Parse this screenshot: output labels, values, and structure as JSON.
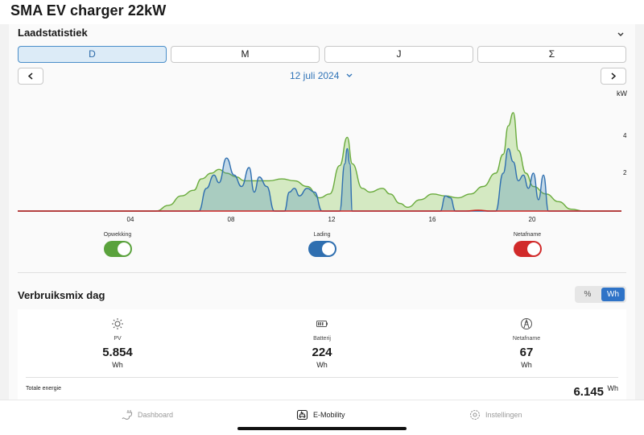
{
  "app": {
    "title": "SMA EV charger 22kW"
  },
  "stats": {
    "title": "Laadstatistiek",
    "periods": [
      "D",
      "M",
      "J",
      "Σ"
    ],
    "active_period": "D",
    "date": "12 juli 2024",
    "unit": "kW"
  },
  "chart_data": {
    "type": "area",
    "xlabel": "",
    "ylabel": "kW",
    "xlim": [
      0,
      24
    ],
    "ylim": [
      0,
      5.5
    ],
    "x_ticks": [
      "04",
      "08",
      "12",
      "16",
      "20"
    ],
    "y_ticks": [
      "2",
      "4"
    ],
    "series": [
      {
        "name": "Opwekking",
        "color": "#6aab3d",
        "points": [
          [
            0,
            0
          ],
          [
            5.5,
            0
          ],
          [
            6,
            0.3
          ],
          [
            6.5,
            0.8
          ],
          [
            7,
            1.1
          ],
          [
            7.3,
            1.7
          ],
          [
            7.7,
            2.0
          ],
          [
            8,
            2.2
          ],
          [
            8.3,
            2.0
          ],
          [
            8.7,
            1.8
          ],
          [
            9,
            1.6
          ],
          [
            9.5,
            1.6
          ],
          [
            10,
            1.6
          ],
          [
            10.5,
            1.7
          ],
          [
            11,
            1.6
          ],
          [
            11.5,
            1.3
          ],
          [
            12,
            0.7
          ],
          [
            12.4,
            0.9
          ],
          [
            12.8,
            2.4
          ],
          [
            13.1,
            3.9
          ],
          [
            13.3,
            2.5
          ],
          [
            13.7,
            1.2
          ],
          [
            14,
            1.0
          ],
          [
            14.5,
            1.2
          ],
          [
            14.8,
            0.9
          ],
          [
            15.2,
            0.4
          ],
          [
            15.5,
            0.2
          ],
          [
            16,
            0.6
          ],
          [
            16.5,
            0.9
          ],
          [
            17,
            0.8
          ],
          [
            17.5,
            0.7
          ],
          [
            18,
            0.9
          ],
          [
            18.5,
            1.3
          ],
          [
            19,
            2.0
          ],
          [
            19.3,
            3.0
          ],
          [
            19.5,
            4.5
          ],
          [
            19.7,
            5.2
          ],
          [
            19.9,
            3.2
          ],
          [
            20.2,
            2.0
          ],
          [
            20.5,
            1.3
          ],
          [
            21,
            0.9
          ],
          [
            21.5,
            0.5
          ],
          [
            22,
            0.1
          ],
          [
            22.5,
            0
          ],
          [
            24,
            0
          ]
        ]
      },
      {
        "name": "Lading",
        "color": "#2f6fb0",
        "points": [
          [
            0,
            0
          ],
          [
            7.2,
            0
          ],
          [
            7.5,
            1.2
          ],
          [
            7.8,
            1.9
          ],
          [
            8,
            1.5
          ],
          [
            8.3,
            2.8
          ],
          [
            8.6,
            1.9
          ],
          [
            8.9,
            1.3
          ],
          [
            9.2,
            2.3
          ],
          [
            9.4,
            1.0
          ],
          [
            9.6,
            1.8
          ],
          [
            9.9,
            1.3
          ],
          [
            10.2,
            0
          ],
          [
            10.6,
            0
          ],
          [
            10.8,
            1.0
          ],
          [
            11,
            1.2
          ],
          [
            11.2,
            0.8
          ],
          [
            11.5,
            1.2
          ],
          [
            11.8,
            1.0
          ],
          [
            12.1,
            0
          ],
          [
            12.8,
            0
          ],
          [
            13,
            2.5
          ],
          [
            13.1,
            3.3
          ],
          [
            13.2,
            2.5
          ],
          [
            13.3,
            0
          ],
          [
            16.8,
            0
          ],
          [
            17,
            0.8
          ],
          [
            17.2,
            0.7
          ],
          [
            17.4,
            0
          ],
          [
            19,
            0
          ],
          [
            19.3,
            2.0
          ],
          [
            19.5,
            3.3
          ],
          [
            19.7,
            2.6
          ],
          [
            19.9,
            1.6
          ],
          [
            20.1,
            1.9
          ],
          [
            20.3,
            1.2
          ],
          [
            20.5,
            2.0
          ],
          [
            20.7,
            0.6
          ],
          [
            20.9,
            1.9
          ],
          [
            21.1,
            0
          ],
          [
            24,
            0
          ]
        ]
      },
      {
        "name": "Netafname",
        "color": "#cc2222",
        "points": [
          [
            0,
            0
          ],
          [
            17.8,
            0
          ],
          [
            18.3,
            0.04
          ],
          [
            18.8,
            0
          ],
          [
            24,
            0
          ]
        ]
      }
    ]
  },
  "legend": [
    {
      "label": "Opwekking",
      "color": "#5aa23c"
    },
    {
      "label": "Lading",
      "color": "#2f6fb0"
    },
    {
      "label": "Netafname",
      "color": "#d12a2a"
    }
  ],
  "mix": {
    "title": "Verbruiksmix dag",
    "unit_options": [
      "%",
      "Wh"
    ],
    "active_unit": "Wh",
    "items": [
      {
        "label": "PV",
        "value": "5.854",
        "unit": "Wh"
      },
      {
        "label": "Batterij",
        "value": "224",
        "unit": "Wh"
      },
      {
        "label": "Netafname",
        "value": "67",
        "unit": "Wh"
      }
    ],
    "total_label": "Totale energie",
    "total_value": "6.145",
    "total_unit": "Wh"
  },
  "tabs": [
    {
      "label": "Dashboard",
      "icon": "plug-icon"
    },
    {
      "label": "E-Mobility",
      "icon": "ev-car-icon"
    },
    {
      "label": "Instellingen",
      "icon": "gear-icon"
    }
  ],
  "active_tab": "E-Mobility"
}
